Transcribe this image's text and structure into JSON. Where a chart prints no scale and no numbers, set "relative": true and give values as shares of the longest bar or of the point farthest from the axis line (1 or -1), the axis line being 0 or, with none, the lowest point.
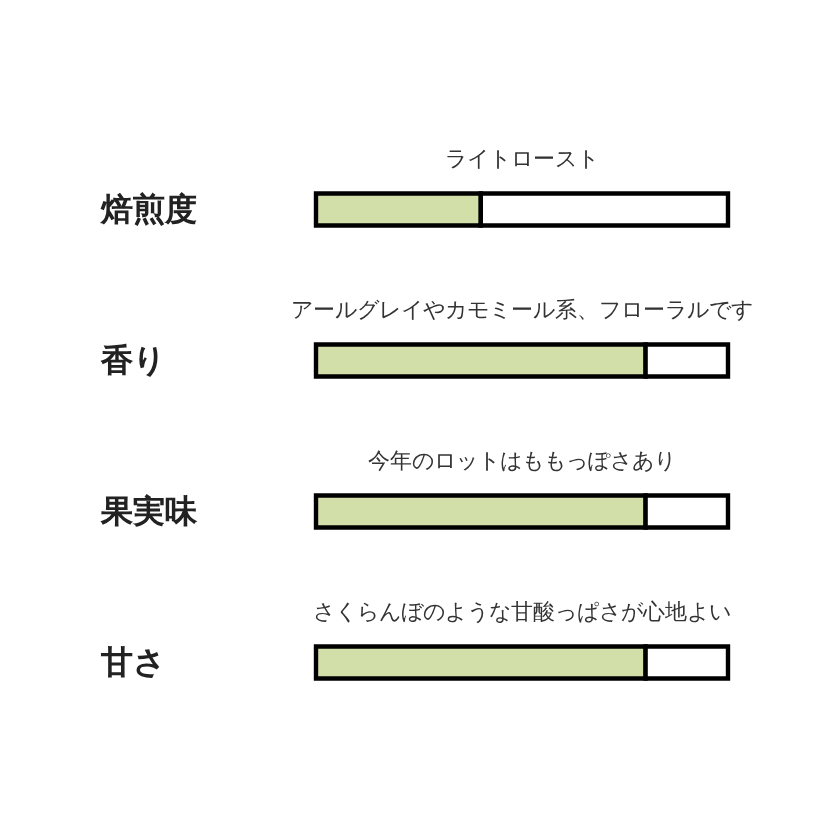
{
  "chart_data": {
    "type": "bar",
    "orientation": "horizontal",
    "stacked": true,
    "relative": true,
    "categories": [
      "焙煎度",
      "香り",
      "果実味",
      "甘さ"
    ],
    "series": [
      {
        "color": "#d2dfa8",
        "values": [
          0.4,
          0.8,
          0.8,
          0.8
        ]
      },
      {
        "color": "#ffffff",
        "values": [
          0.6,
          0.2,
          0.2,
          0.2
        ]
      }
    ],
    "annotations": [
      "ライトロースト",
      "アールグレイやカモミール系、フローラルです",
      "今年のロットはももっぽさあり",
      "さくらんぼのような甘酸っぱさが心地よい"
    ]
  }
}
